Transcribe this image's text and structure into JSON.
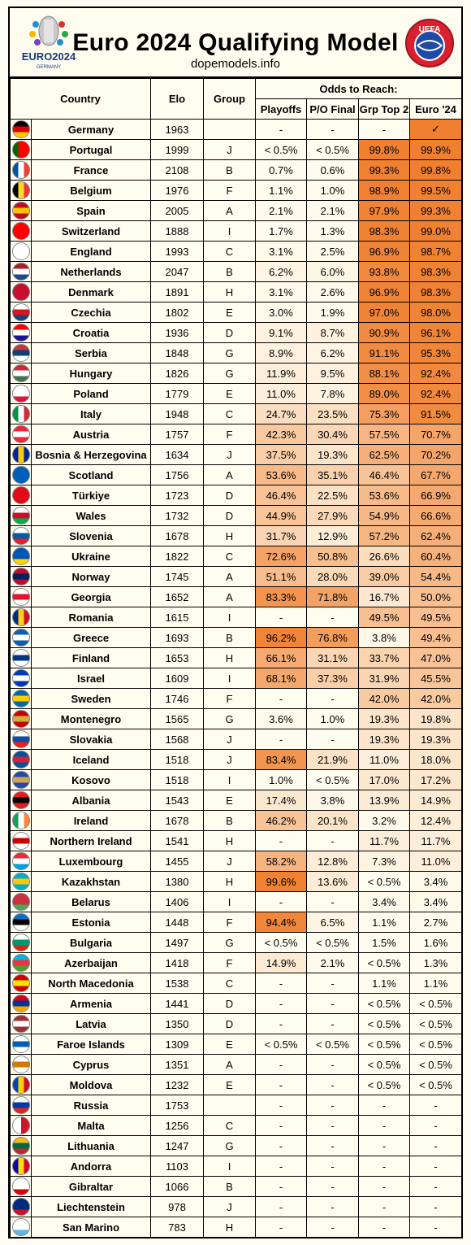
{
  "header": {
    "title": "Euro 2024 Qualifying Model",
    "subtitle": "dopemodels.info",
    "euro_logo_text": "EURO2024",
    "euro_logo_sub": "GERMANY",
    "uefa_logo_text": "UEFA"
  },
  "columns": {
    "country": "Country",
    "elo": "Elo",
    "group": "Group",
    "odds": "Odds to Reach:",
    "playoffs": "Playoffs",
    "po_final": "P/O Final",
    "grp_top2": "Grp Top 2",
    "euro24": "Euro '24"
  },
  "rows": [
    {
      "country": "Germany",
      "elo": "1963",
      "group": "",
      "playoffs": "-",
      "po_final": "-",
      "grp_top2": "-",
      "euro24": "✓",
      "flag": [
        "#000000",
        "#dd0000",
        "#ffce00"
      ],
      "dir": "h"
    },
    {
      "country": "Portugal",
      "elo": "1999",
      "group": "J",
      "playoffs": "< 0.5%",
      "po_final": "< 0.5%",
      "grp_top2": "99.8%",
      "euro24": "99.9%",
      "flag": [
        "#006600",
        "#ff0000",
        "#ff0000"
      ],
      "dir": "v"
    },
    {
      "country": "France",
      "elo": "2108",
      "group": "B",
      "playoffs": "0.7%",
      "po_final": "0.6%",
      "grp_top2": "99.3%",
      "euro24": "99.8%",
      "flag": [
        "#0055a4",
        "#ffffff",
        "#ef4135"
      ],
      "dir": "v"
    },
    {
      "country": "Belgium",
      "elo": "1976",
      "group": "F",
      "playoffs": "1.1%",
      "po_final": "1.0%",
      "grp_top2": "98.9%",
      "euro24": "99.5%",
      "flag": [
        "#000000",
        "#fdda24",
        "#ef3340"
      ],
      "dir": "v"
    },
    {
      "country": "Spain",
      "elo": "2005",
      "group": "A",
      "playoffs": "2.1%",
      "po_final": "2.1%",
      "grp_top2": "97.9%",
      "euro24": "99.3%",
      "flag": [
        "#c60b1e",
        "#ffc400",
        "#c60b1e"
      ],
      "dir": "h"
    },
    {
      "country": "Switzerland",
      "elo": "1888",
      "group": "I",
      "playoffs": "1.7%",
      "po_final": "1.3%",
      "grp_top2": "98.3%",
      "euro24": "99.0%",
      "flag": [
        "#ff0000",
        "#ff0000",
        "#ff0000"
      ],
      "dir": "h"
    },
    {
      "country": "England",
      "elo": "1993",
      "group": "C",
      "playoffs": "3.1%",
      "po_final": "2.5%",
      "grp_top2": "96.9%",
      "euro24": "98.7%",
      "flag": [
        "#ffffff",
        "#ffffff",
        "#ffffff"
      ],
      "dir": "h"
    },
    {
      "country": "Netherlands",
      "elo": "2047",
      "group": "B",
      "playoffs": "6.2%",
      "po_final": "6.0%",
      "grp_top2": "93.8%",
      "euro24": "98.3%",
      "flag": [
        "#ae1c28",
        "#ffffff",
        "#21468b"
      ],
      "dir": "h"
    },
    {
      "country": "Denmark",
      "elo": "1891",
      "group": "H",
      "playoffs": "3.1%",
      "po_final": "2.6%",
      "grp_top2": "96.9%",
      "euro24": "98.3%",
      "flag": [
        "#c8102e",
        "#c8102e",
        "#c8102e"
      ],
      "dir": "h"
    },
    {
      "country": "Czechia",
      "elo": "1802",
      "group": "E",
      "playoffs": "3.0%",
      "po_final": "1.9%",
      "grp_top2": "97.0%",
      "euro24": "98.0%",
      "flag": [
        "#ffffff",
        "#d7141a",
        "#11457e"
      ],
      "dir": "h"
    },
    {
      "country": "Croatia",
      "elo": "1936",
      "group": "D",
      "playoffs": "9.1%",
      "po_final": "8.7%",
      "grp_top2": "90.9%",
      "euro24": "96.1%",
      "flag": [
        "#ff0000",
        "#ffffff",
        "#171796"
      ],
      "dir": "h"
    },
    {
      "country": "Serbia",
      "elo": "1848",
      "group": "G",
      "playoffs": "8.9%",
      "po_final": "6.2%",
      "grp_top2": "91.1%",
      "euro24": "95.3%",
      "flag": [
        "#c6363c",
        "#0c4076",
        "#ffffff"
      ],
      "dir": "h"
    },
    {
      "country": "Hungary",
      "elo": "1826",
      "group": "G",
      "playoffs": "11.9%",
      "po_final": "9.5%",
      "grp_top2": "88.1%",
      "euro24": "92.4%",
      "flag": [
        "#ce2939",
        "#ffffff",
        "#477050"
      ],
      "dir": "h"
    },
    {
      "country": "Poland",
      "elo": "1779",
      "group": "E",
      "playoffs": "11.0%",
      "po_final": "7.8%",
      "grp_top2": "89.0%",
      "euro24": "92.4%",
      "flag": [
        "#ffffff",
        "#ffffff",
        "#dc143c"
      ],
      "dir": "h"
    },
    {
      "country": "Italy",
      "elo": "1948",
      "group": "C",
      "playoffs": "24.7%",
      "po_final": "23.5%",
      "grp_top2": "75.3%",
      "euro24": "91.5%",
      "flag": [
        "#009246",
        "#ffffff",
        "#ce2b37"
      ],
      "dir": "v"
    },
    {
      "country": "Austria",
      "elo": "1757",
      "group": "F",
      "playoffs": "42.3%",
      "po_final": "30.4%",
      "grp_top2": "57.5%",
      "euro24": "70.7%",
      "flag": [
        "#ed2939",
        "#ffffff",
        "#ed2939"
      ],
      "dir": "h"
    },
    {
      "country": "Bosnia & Herzegovina",
      "elo": "1634",
      "group": "J",
      "playoffs": "37.5%",
      "po_final": "19.3%",
      "grp_top2": "62.5%",
      "euro24": "70.2%",
      "flag": [
        "#002395",
        "#fecb00",
        "#002395"
      ],
      "dir": "v"
    },
    {
      "country": "Scotland",
      "elo": "1756",
      "group": "A",
      "playoffs": "53.6%",
      "po_final": "35.1%",
      "grp_top2": "46.4%",
      "euro24": "67.7%",
      "flag": [
        "#005eb8",
        "#005eb8",
        "#005eb8"
      ],
      "dir": "h"
    },
    {
      "country": "Türkiye",
      "elo": "1723",
      "group": "D",
      "playoffs": "46.4%",
      "po_final": "22.5%",
      "grp_top2": "53.6%",
      "euro24": "66.9%",
      "flag": [
        "#e30a17",
        "#e30a17",
        "#e30a17"
      ],
      "dir": "h"
    },
    {
      "country": "Wales",
      "elo": "1732",
      "group": "D",
      "playoffs": "44.9%",
      "po_final": "27.9%",
      "grp_top2": "54.9%",
      "euro24": "66.6%",
      "flag": [
        "#ffffff",
        "#c8102e",
        "#00b140"
      ],
      "dir": "h"
    },
    {
      "country": "Slovenia",
      "elo": "1678",
      "group": "H",
      "playoffs": "31.7%",
      "po_final": "12.9%",
      "grp_top2": "57.2%",
      "euro24": "62.4%",
      "flag": [
        "#ffffff",
        "#005da4",
        "#ed1c24"
      ],
      "dir": "h"
    },
    {
      "country": "Ukraine",
      "elo": "1822",
      "group": "C",
      "playoffs": "72.6%",
      "po_final": "50.8%",
      "grp_top2": "26.6%",
      "euro24": "60.4%",
      "flag": [
        "#0057b7",
        "#0057b7",
        "#ffd700"
      ],
      "dir": "h"
    },
    {
      "country": "Norway",
      "elo": "1745",
      "group": "A",
      "playoffs": "51.1%",
      "po_final": "28.0%",
      "grp_top2": "39.0%",
      "euro24": "54.4%",
      "flag": [
        "#ba0c2f",
        "#00205b",
        "#ba0c2f"
      ],
      "dir": "h"
    },
    {
      "country": "Georgia",
      "elo": "1652",
      "group": "A",
      "playoffs": "83.3%",
      "po_final": "71.8%",
      "grp_top2": "16.7%",
      "euro24": "50.0%",
      "flag": [
        "#ffffff",
        "#e8112d",
        "#ffffff"
      ],
      "dir": "h"
    },
    {
      "country": "Romania",
      "elo": "1615",
      "group": "I",
      "playoffs": "-",
      "po_final": "-",
      "grp_top2": "49.5%",
      "euro24": "49.5%",
      "flag": [
        "#002b7f",
        "#fcd116",
        "#ce1126"
      ],
      "dir": "v"
    },
    {
      "country": "Greece",
      "elo": "1693",
      "group": "B",
      "playoffs": "96.2%",
      "po_final": "76.8%",
      "grp_top2": "3.8%",
      "euro24": "49.4%",
      "flag": [
        "#0d5eaf",
        "#ffffff",
        "#0d5eaf"
      ],
      "dir": "h"
    },
    {
      "country": "Finland",
      "elo": "1653",
      "group": "H",
      "playoffs": "66.1%",
      "po_final": "31.1%",
      "grp_top2": "33.7%",
      "euro24": "47.0%",
      "flag": [
        "#ffffff",
        "#003580",
        "#ffffff"
      ],
      "dir": "h"
    },
    {
      "country": "Israel",
      "elo": "1609",
      "group": "I",
      "playoffs": "68.1%",
      "po_final": "37.3%",
      "grp_top2": "31.9%",
      "euro24": "45.5%",
      "flag": [
        "#0038b8",
        "#ffffff",
        "#0038b8"
      ],
      "dir": "h"
    },
    {
      "country": "Sweden",
      "elo": "1746",
      "group": "F",
      "playoffs": "-",
      "po_final": "-",
      "grp_top2": "42.0%",
      "euro24": "42.0%",
      "flag": [
        "#006aa7",
        "#fecc00",
        "#006aa7"
      ],
      "dir": "h"
    },
    {
      "country": "Montenegro",
      "elo": "1565",
      "group": "G",
      "playoffs": "3.6%",
      "po_final": "1.0%",
      "grp_top2": "19.3%",
      "euro24": "19.8%",
      "flag": [
        "#c40308",
        "#d4af3a",
        "#c40308"
      ],
      "dir": "h"
    },
    {
      "country": "Slovakia",
      "elo": "1568",
      "group": "J",
      "playoffs": "-",
      "po_final": "-",
      "grp_top2": "19.3%",
      "euro24": "19.3%",
      "flag": [
        "#ffffff",
        "#0b4ea2",
        "#ee1c25"
      ],
      "dir": "h"
    },
    {
      "country": "Iceland",
      "elo": "1518",
      "group": "J",
      "playoffs": "83.4%",
      "po_final": "21.9%",
      "grp_top2": "11.0%",
      "euro24": "18.0%",
      "flag": [
        "#02529c",
        "#dc1e35",
        "#02529c"
      ],
      "dir": "h"
    },
    {
      "country": "Kosovo",
      "elo": "1518",
      "group": "I",
      "playoffs": "1.0%",
      "po_final": "< 0.5%",
      "grp_top2": "17.0%",
      "euro24": "17.2%",
      "flag": [
        "#244aa5",
        "#d0a650",
        "#244aa5"
      ],
      "dir": "h"
    },
    {
      "country": "Albania",
      "elo": "1543",
      "group": "E",
      "playoffs": "17.4%",
      "po_final": "3.8%",
      "grp_top2": "13.9%",
      "euro24": "14.9%",
      "flag": [
        "#e41e20",
        "#000000",
        "#e41e20"
      ],
      "dir": "h"
    },
    {
      "country": "Ireland",
      "elo": "1678",
      "group": "B",
      "playoffs": "46.2%",
      "po_final": "20.1%",
      "grp_top2": "3.2%",
      "euro24": "12.4%",
      "flag": [
        "#169b62",
        "#ffffff",
        "#ff883e"
      ],
      "dir": "v"
    },
    {
      "country": "Northern Ireland",
      "elo": "1541",
      "group": "H",
      "playoffs": "-",
      "po_final": "-",
      "grp_top2": "11.7%",
      "euro24": "11.7%",
      "flag": [
        "#ffffff",
        "#cc0000",
        "#ffffff"
      ],
      "dir": "h"
    },
    {
      "country": "Luxembourg",
      "elo": "1455",
      "group": "J",
      "playoffs": "58.2%",
      "po_final": "12.8%",
      "grp_top2": "7.3%",
      "euro24": "11.0%",
      "flag": [
        "#ed2939",
        "#ffffff",
        "#00a1de"
      ],
      "dir": "h"
    },
    {
      "country": "Kazakhstan",
      "elo": "1380",
      "group": "H",
      "playoffs": "99.6%",
      "po_final": "13.6%",
      "grp_top2": "< 0.5%",
      "euro24": "3.4%",
      "flag": [
        "#00afca",
        "#fec50c",
        "#00afca"
      ],
      "dir": "h"
    },
    {
      "country": "Belarus",
      "elo": "1406",
      "group": "I",
      "playoffs": "-",
      "po_final": "-",
      "grp_top2": "3.4%",
      "euro24": "3.4%",
      "flag": [
        "#c8313e",
        "#c8313e",
        "#4aa657"
      ],
      "dir": "h"
    },
    {
      "country": "Estonia",
      "elo": "1448",
      "group": "F",
      "playoffs": "94.4%",
      "po_final": "6.5%",
      "grp_top2": "1.1%",
      "euro24": "2.7%",
      "flag": [
        "#0072ce",
        "#000000",
        "#ffffff"
      ],
      "dir": "h"
    },
    {
      "country": "Bulgaria",
      "elo": "1497",
      "group": "G",
      "playoffs": "< 0.5%",
      "po_final": "< 0.5%",
      "grp_top2": "1.5%",
      "euro24": "1.6%",
      "flag": [
        "#ffffff",
        "#00966e",
        "#d62612"
      ],
      "dir": "h"
    },
    {
      "country": "Azerbaijan",
      "elo": "1418",
      "group": "F",
      "playoffs": "14.9%",
      "po_final": "2.1%",
      "grp_top2": "< 0.5%",
      "euro24": "1.3%",
      "flag": [
        "#00b5e2",
        "#ef3340",
        "#509e2f"
      ],
      "dir": "h"
    },
    {
      "country": "North Macedonia",
      "elo": "1538",
      "group": "C",
      "playoffs": "-",
      "po_final": "-",
      "grp_top2": "1.1%",
      "euro24": "1.1%",
      "flag": [
        "#d20000",
        "#ffe600",
        "#d20000"
      ],
      "dir": "h"
    },
    {
      "country": "Armenia",
      "elo": "1441",
      "group": "D",
      "playoffs": "-",
      "po_final": "-",
      "grp_top2": "< 0.5%",
      "euro24": "< 0.5%",
      "flag": [
        "#d90012",
        "#0033a0",
        "#f2a800"
      ],
      "dir": "h"
    },
    {
      "country": "Latvia",
      "elo": "1350",
      "group": "D",
      "playoffs": "-",
      "po_final": "-",
      "grp_top2": "< 0.5%",
      "euro24": "< 0.5%",
      "flag": [
        "#9e3039",
        "#ffffff",
        "#9e3039"
      ],
      "dir": "h"
    },
    {
      "country": "Faroe Islands",
      "elo": "1309",
      "group": "E",
      "playoffs": "< 0.5%",
      "po_final": "< 0.5%",
      "grp_top2": "< 0.5%",
      "euro24": "< 0.5%",
      "flag": [
        "#ffffff",
        "#005eb8",
        "#ffffff"
      ],
      "dir": "h"
    },
    {
      "country": "Cyprus",
      "elo": "1351",
      "group": "A",
      "playoffs": "-",
      "po_final": "-",
      "grp_top2": "< 0.5%",
      "euro24": "< 0.5%",
      "flag": [
        "#ffffff",
        "#d57800",
        "#ffffff"
      ],
      "dir": "h"
    },
    {
      "country": "Moldova",
      "elo": "1232",
      "group": "E",
      "playoffs": "-",
      "po_final": "-",
      "grp_top2": "< 0.5%",
      "euro24": "< 0.5%",
      "flag": [
        "#0046ae",
        "#ffd200",
        "#cc092f"
      ],
      "dir": "v"
    },
    {
      "country": "Russia",
      "elo": "1753",
      "group": "",
      "playoffs": "-",
      "po_final": "-",
      "grp_top2": "-",
      "euro24": "-",
      "flag": [
        "#ffffff",
        "#0039a6",
        "#d52b1e"
      ],
      "dir": "h"
    },
    {
      "country": "Malta",
      "elo": "1256",
      "group": "C",
      "playoffs": "-",
      "po_final": "-",
      "grp_top2": "-",
      "euro24": "-",
      "flag": [
        "#ffffff",
        "#cf142b",
        "#cf142b"
      ],
      "dir": "v2"
    },
    {
      "country": "Lithuania",
      "elo": "1247",
      "group": "G",
      "playoffs": "-",
      "po_final": "-",
      "grp_top2": "-",
      "euro24": "-",
      "flag": [
        "#fdb913",
        "#006a44",
        "#c1272d"
      ],
      "dir": "h"
    },
    {
      "country": "Andorra",
      "elo": "1103",
      "group": "I",
      "playoffs": "-",
      "po_final": "-",
      "grp_top2": "-",
      "euro24": "-",
      "flag": [
        "#10069f",
        "#fedf00",
        "#d50032"
      ],
      "dir": "v"
    },
    {
      "country": "Gibraltar",
      "elo": "1066",
      "group": "B",
      "playoffs": "-",
      "po_final": "-",
      "grp_top2": "-",
      "euro24": "-",
      "flag": [
        "#ffffff",
        "#ffffff",
        "#da000c"
      ],
      "dir": "h"
    },
    {
      "country": "Liechtenstein",
      "elo": "978",
      "group": "J",
      "playoffs": "-",
      "po_final": "-",
      "grp_top2": "-",
      "euro24": "-",
      "flag": [
        "#002b7f",
        "#002b7f",
        "#ce1126"
      ],
      "dir": "h"
    },
    {
      "country": "San Marino",
      "elo": "783",
      "group": "H",
      "playoffs": "-",
      "po_final": "-",
      "grp_top2": "-",
      "euro24": "-",
      "flag": [
        "#ffffff",
        "#ffffff",
        "#5eb6e4"
      ],
      "dir": "h"
    }
  ],
  "heat_colors": {
    "low": "#fffdf0",
    "high": "#f08030"
  }
}
